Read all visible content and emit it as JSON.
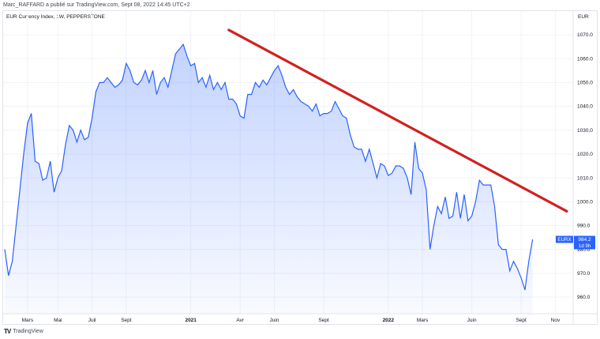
{
  "caption": "Marc_RAFFARD a publié sur TradingView.com, Sept 08, 2022 14:45 UTC+2",
  "footer": {
    "logo_text": "TV",
    "brand": "TradingView"
  },
  "chart_data": {
    "type": "area",
    "title": "EUR Currency Index, 1W, PEPPERSTONE",
    "y_unit": "EUR",
    "ylim": [
      954,
      1078
    ],
    "yticks": [
      960,
      970,
      980,
      990,
      1000,
      1010,
      1020,
      1030,
      1040,
      1050,
      1060,
      1070
    ],
    "xlim": [
      0,
      137
    ],
    "xticks": [
      {
        "label": "Mars",
        "x": 6
      },
      {
        "label": "Mai",
        "x": 14
      },
      {
        "label": "Juil",
        "x": 23
      },
      {
        "label": "Sept",
        "x": 32
      },
      {
        "label": "2021",
        "x": 49
      },
      {
        "label": "Avr",
        "x": 62
      },
      {
        "label": "Juin",
        "x": 71
      },
      {
        "label": "Sept",
        "x": 84
      },
      {
        "label": "2022",
        "x": 101
      },
      {
        "label": "Mars",
        "x": 110
      },
      {
        "label": "Juin",
        "x": 123
      },
      {
        "label": "Sept",
        "x": 136
      }
    ],
    "x_after": [
      {
        "label": "Nov",
        "x": 145
      }
    ],
    "series": [
      {
        "symbol": "EURX",
        "color": "#2962ff",
        "values": [
          980,
          969,
          975,
          990,
          1005,
          1020,
          1033,
          1037,
          1017,
          1016,
          1009,
          1010,
          1017,
          1004,
          1010,
          1013,
          1024,
          1032,
          1030,
          1025,
          1030,
          1026,
          1027,
          1035,
          1046,
          1050,
          1050,
          1052,
          1050,
          1048,
          1049,
          1051,
          1058,
          1055,
          1050,
          1049,
          1051,
          1055,
          1050,
          1055,
          1045,
          1050,
          1052,
          1048,
          1055,
          1062,
          1064,
          1066,
          1061,
          1057,
          1058,
          1050,
          1052,
          1048,
          1053,
          1047,
          1050,
          1047,
          1050,
          1043,
          1043,
          1041,
          1036,
          1035,
          1045,
          1045,
          1050,
          1048,
          1051,
          1049,
          1052,
          1055,
          1057,
          1053,
          1048,
          1045,
          1047,
          1044,
          1042,
          1041,
          1040,
          1038,
          1041,
          1036,
          1037,
          1037,
          1038,
          1042,
          1039,
          1036,
          1035,
          1028,
          1023,
          1022,
          1022,
          1017,
          1022,
          1016,
          1010,
          1016,
          1015,
          1011,
          1012,
          1015,
          1015,
          1014,
          1010,
          1003,
          1025,
          1014,
          1012,
          1005,
          980,
          990,
          998,
          995,
          1002,
          993,
          994,
          1004,
          993,
          1003,
          992,
          994,
          1000,
          1009,
          1007,
          1007,
          1007,
          998,
          982,
          980,
          980,
          971,
          975,
          972,
          968,
          963,
          975,
          984.2
        ]
      }
    ],
    "last_value": "984.2",
    "countdown": "1d 9h",
    "annotations": [
      {
        "type": "trendline",
        "color": "#d32020",
        "from": {
          "x": 59,
          "y": 1072
        },
        "to": {
          "x": 148,
          "y": 996
        }
      }
    ]
  }
}
